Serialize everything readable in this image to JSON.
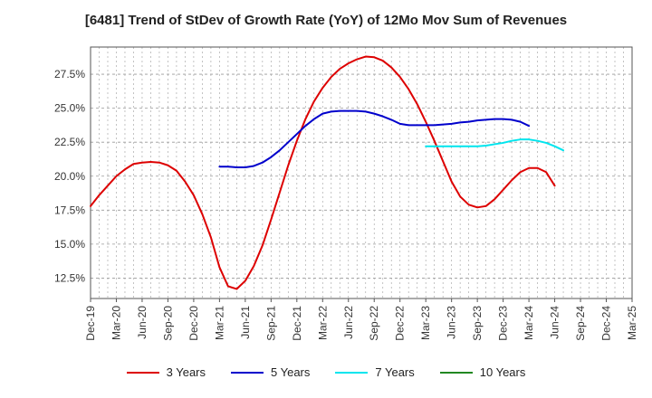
{
  "chart_data": {
    "type": "line",
    "title": "[6481]  Trend of StDev of Growth Rate (YoY) of 12Mo Mov Sum of Revenues",
    "xlabel": "",
    "ylabel": "",
    "x_ticks": [
      "Dec-19",
      "Mar-20",
      "Jun-20",
      "Sep-20",
      "Dec-20",
      "Mar-21",
      "Jun-21",
      "Sep-21",
      "Dec-21",
      "Mar-22",
      "Jun-22",
      "Sep-22",
      "Dec-22",
      "Mar-23",
      "Jun-23",
      "Sep-23",
      "Dec-23",
      "Mar-24",
      "Jun-24",
      "Sep-24",
      "Dec-24",
      "Mar-25"
    ],
    "y_ticks": [
      12.5,
      15.0,
      17.5,
      20.0,
      22.5,
      25.0,
      27.5
    ],
    "y_tick_labels": [
      "12.5%",
      "15.0%",
      "17.5%",
      "20.0%",
      "22.5%",
      "25.0%",
      "27.5%"
    ],
    "ylim": [
      11.0,
      29.5
    ],
    "grid": true,
    "legend_position": "bottom",
    "series": [
      {
        "name": "3 Years",
        "color": "#dd0000",
        "start_index": 0,
        "values": [
          17.8,
          18.6,
          19.3,
          20.0,
          20.5,
          20.9,
          21.0,
          21.05,
          21.0,
          20.8,
          20.4,
          19.6,
          18.6,
          17.2,
          15.5,
          13.3,
          11.9,
          11.7,
          12.3,
          13.4,
          14.9,
          16.8,
          18.8,
          20.8,
          22.6,
          24.2,
          25.5,
          26.5,
          27.3,
          27.9,
          28.3,
          28.6,
          28.8,
          28.75,
          28.5,
          28.0,
          27.3,
          26.4,
          25.3,
          24.0,
          22.6,
          21.1,
          19.6,
          18.5,
          17.9,
          17.7,
          17.8,
          18.3,
          19.0,
          19.7,
          20.3,
          20.6,
          20.6,
          20.3,
          19.3
        ]
      },
      {
        "name": "5 Years",
        "color": "#0000cc",
        "start_index": 15,
        "values": [
          20.7,
          20.7,
          20.65,
          20.65,
          20.75,
          21.0,
          21.4,
          21.9,
          22.5,
          23.1,
          23.7,
          24.2,
          24.6,
          24.75,
          24.8,
          24.8,
          24.8,
          24.75,
          24.6,
          24.4,
          24.15,
          23.85,
          23.75,
          23.75,
          23.75,
          23.75,
          23.8,
          23.85,
          23.95,
          24.0,
          24.1,
          24.15,
          24.2,
          24.2,
          24.15,
          24.0,
          23.7
        ]
      },
      {
        "name": "7 Years",
        "color": "#00e5ee",
        "start_index": 39,
        "values": [
          22.2,
          22.2,
          22.2,
          22.2,
          22.2,
          22.2,
          22.2,
          22.25,
          22.35,
          22.45,
          22.6,
          22.7,
          22.7,
          22.6,
          22.45,
          22.2,
          21.9
        ]
      },
      {
        "name": "10 Years",
        "color": "#228822",
        "start_index": 0,
        "values": []
      }
    ]
  }
}
